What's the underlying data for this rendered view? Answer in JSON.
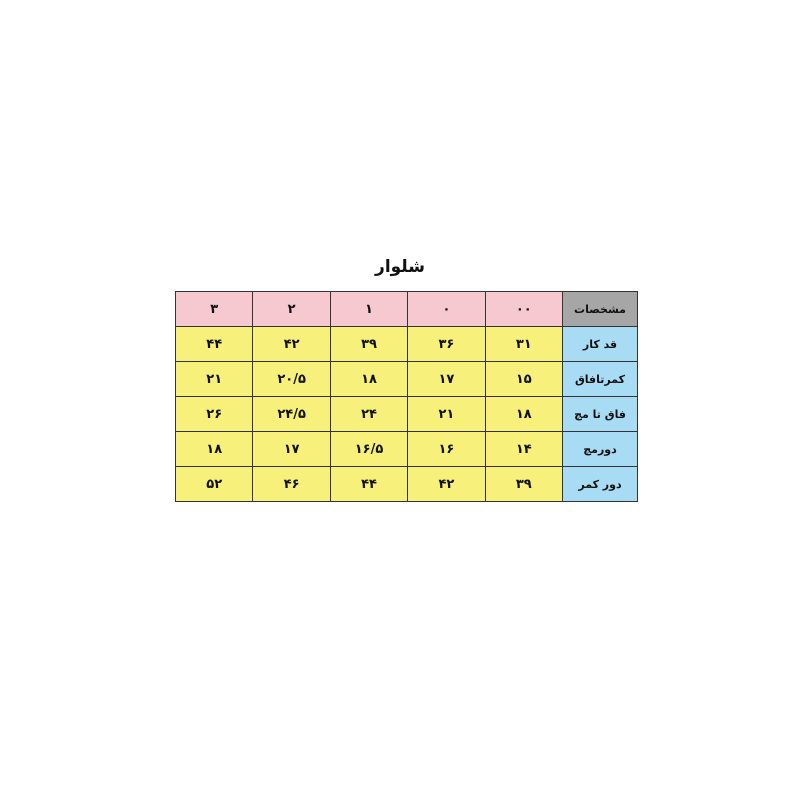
{
  "title": "شلوار",
  "table": {
    "header": [
      "مشخصات",
      "۰۰",
      "۰",
      "۱",
      "۲",
      "۳"
    ],
    "rows": [
      [
        "قد کار",
        "۳۱",
        "۳۶",
        "۳۹",
        "۴۲",
        "۴۴"
      ],
      [
        "کمرتافاق",
        "۱۵",
        "۱۷",
        "۱۸",
        "۲۰/۵",
        "۲۱"
      ],
      [
        "فاق تا مچ",
        "۱۸",
        "۲۱",
        "۲۴",
        "۲۴/۵",
        "۲۶"
      ],
      [
        "دورمچ",
        "۱۴",
        "۱۶",
        "۱۶/۵",
        "۱۷",
        "۱۸"
      ],
      [
        "دور کمر",
        "۳۹",
        "۴۲",
        "۴۴",
        "۴۶",
        "۵۲"
      ]
    ]
  }
}
